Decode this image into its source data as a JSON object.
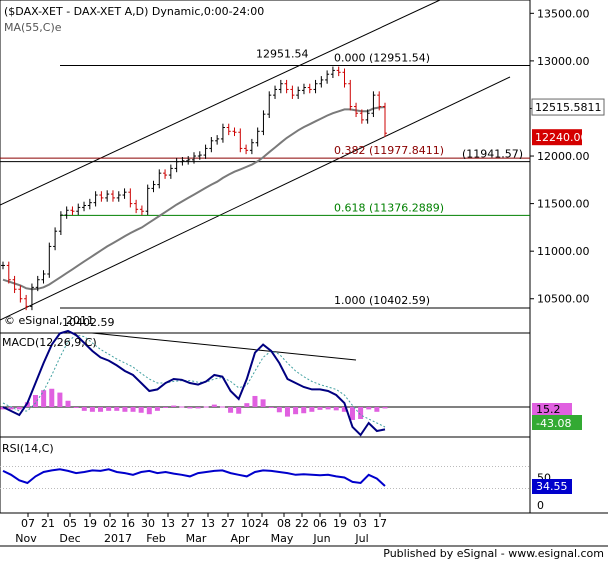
{
  "chart_data": {
    "type": "line",
    "title": "($DAX-XET - DAX-XET A,D) Dynamic,0:00-24:00",
    "ma_label": "MA(55,C)e",
    "copyright": "© eSignal, 2011",
    "published": "Published by eSignal - www.esignal.com",
    "x": [
      "07",
      "21",
      "05",
      "19",
      "02",
      "16",
      "30",
      "13",
      "27",
      "13",
      "27",
      "10",
      "24",
      "08",
      "22",
      "06",
      "19",
      "03",
      "17"
    ],
    "months": [
      "Nov",
      "Dec",
      "2017",
      "Feb",
      "Mar",
      "Apr",
      "May",
      "Jun",
      "Jul"
    ],
    "price": {
      "ylim": [
        10140,
        13640
      ],
      "ticks": [
        "13500.00",
        "13000.00",
        "12500.00",
        "12000.00",
        "11500.00",
        "11000.00",
        "10500.00"
      ],
      "tick_values": [
        13500,
        13000,
        12500,
        12000,
        11500,
        11000,
        10500
      ],
      "current_tag": "12240.06",
      "ma_tag": "12515.5811",
      "high_label": "12951.54",
      "low_label": "10402.59",
      "fib_levels": [
        {
          "label": "0.000 (12951.54)",
          "value": 12951.54,
          "color": "#000000"
        },
        {
          "label": "0.382 (11977.8411)",
          "value": 11977.8411,
          "color": "#8b0000"
        },
        {
          "label": "0.618 (11376.2889)",
          "value": 11376.2889,
          "color": "#008000"
        },
        {
          "label": "1.000 (10402.59)",
          "value": 10402.59,
          "color": "#000000"
        }
      ],
      "support_label": "(11941.57)",
      "support_value": 11941.57,
      "close": [
        10850,
        10700,
        10600,
        10500,
        10420,
        10620,
        10700,
        10760,
        11050,
        11210,
        11380,
        11430,
        11420,
        11460,
        11480,
        11510,
        11590,
        11560,
        11600,
        11560,
        11590,
        11620,
        11500,
        11440,
        11420,
        11660,
        11700,
        11820,
        11800,
        11870,
        11940,
        11950,
        11960,
        12000,
        12010,
        12080,
        12160,
        12180,
        12300,
        12260,
        12250,
        12080,
        12060,
        12140,
        12260,
        12440,
        12640,
        12700,
        12760,
        12700,
        12640,
        12690,
        12720,
        12700,
        12760,
        12800,
        12860,
        12900,
        12880,
        12760,
        12520,
        12450,
        12380,
        12450,
        12640,
        12520,
        12240
      ],
      "ma": [
        10700,
        10680,
        10660,
        10640,
        10610,
        10600,
        10605,
        10620,
        10650,
        10690,
        10730,
        10770,
        10810,
        10850,
        10890,
        10930,
        10970,
        11010,
        11050,
        11085,
        11120,
        11155,
        11190,
        11220,
        11250,
        11290,
        11330,
        11370,
        11410,
        11450,
        11490,
        11525,
        11560,
        11595,
        11630,
        11665,
        11700,
        11730,
        11770,
        11805,
        11835,
        11860,
        11885,
        11910,
        11945,
        11990,
        12040,
        12090,
        12140,
        12190,
        12230,
        12270,
        12305,
        12335,
        12365,
        12395,
        12425,
        12450,
        12470,
        12490,
        12490,
        12480,
        12470,
        12470,
        12500,
        12510,
        12515
      ]
    },
    "macd": {
      "label": "MACD(12,26,9,C)",
      "tag1": "15.2",
      "tag2": "-43.08",
      "line": [
        0.0,
        -0.05,
        -0.1,
        0.05,
        0.3,
        0.55,
        0.78,
        0.92,
        0.95,
        0.9,
        0.8,
        0.7,
        0.62,
        0.58,
        0.52,
        0.45,
        0.4,
        0.3,
        0.2,
        0.22,
        0.3,
        0.35,
        0.34,
        0.3,
        0.28,
        0.32,
        0.4,
        0.38,
        0.2,
        0.1,
        0.35,
        0.68,
        0.78,
        0.7,
        0.55,
        0.35,
        0.3,
        0.25,
        0.22,
        0.22,
        0.2,
        0.15,
        0.05,
        -0.25,
        -0.35,
        -0.2,
        -0.3,
        -0.28
      ],
      "signal": [
        0.05,
        0.0,
        -0.05,
        -0.05,
        0.05,
        0.2,
        0.4,
        0.62,
        0.82,
        0.9,
        0.88,
        0.8,
        0.72,
        0.66,
        0.6,
        0.55,
        0.5,
        0.42,
        0.35,
        0.3,
        0.3,
        0.32,
        0.33,
        0.33,
        0.31,
        0.31,
        0.35,
        0.37,
        0.32,
        0.24,
        0.27,
        0.45,
        0.62,
        0.7,
        0.66,
        0.55,
        0.45,
        0.38,
        0.32,
        0.28,
        0.25,
        0.22,
        0.15,
        0.02,
        -0.1,
        -0.15,
        -0.2,
        -0.25
      ],
      "hist": [
        -0.05,
        -0.05,
        -0.05,
        0.1,
        0.25,
        0.35,
        0.38,
        0.3,
        0.13,
        0.0,
        -0.08,
        -0.1,
        -0.1,
        -0.08,
        -0.08,
        -0.1,
        -0.1,
        -0.12,
        -0.15,
        -0.08,
        0.0,
        0.03,
        0.01,
        -0.03,
        -0.03,
        0.01,
        0.05,
        0.01,
        -0.12,
        -0.14,
        0.08,
        0.23,
        0.16,
        0.0,
        -0.11,
        -0.2,
        -0.15,
        -0.13,
        -0.1,
        -0.06,
        -0.05,
        -0.07,
        -0.1,
        -0.27,
        -0.25,
        -0.05,
        -0.1,
        -0.03
      ]
    },
    "rsi": {
      "label": "RSI(14,C)",
      "tag": "34.55",
      "tick": "50",
      "tick_zero": "0",
      "values": [
        62,
        55,
        45,
        40,
        52,
        60,
        63,
        65,
        62,
        58,
        60,
        63,
        62,
        65,
        60,
        58,
        55,
        60,
        62,
        58,
        60,
        57,
        55,
        52,
        58,
        60,
        62,
        63,
        58,
        55,
        52,
        60,
        63,
        62,
        60,
        58,
        55,
        56,
        55,
        54,
        55,
        52,
        50,
        42,
        40,
        55,
        48,
        34.55
      ]
    }
  }
}
